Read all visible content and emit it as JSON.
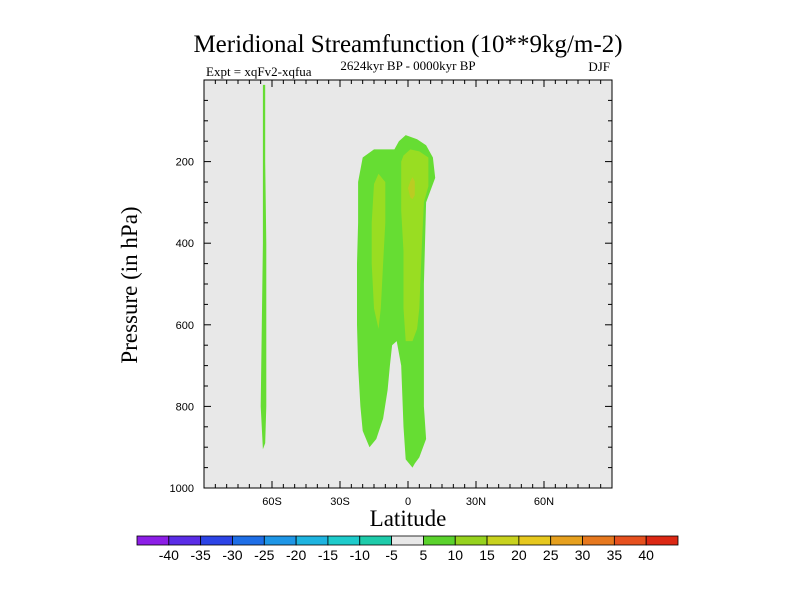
{
  "chart_data": {
    "type": "heatmap",
    "title": "Meridional Streamfunction (10**9kg/m-2)",
    "left_string": "Expt = xqFv2-xqfua",
    "center_string": "2624kyr BP - 0000kyr BP",
    "right_string": "DJF",
    "xlabel": "Latitude",
    "ylabel": "Pressure (in hPa)",
    "xlim": [
      -90,
      90
    ],
    "ylim": [
      1000,
      0
    ],
    "x_ticks": [
      {
        "value": -60,
        "label": "60S"
      },
      {
        "value": -30,
        "label": "30S"
      },
      {
        "value": 0,
        "label": "0"
      },
      {
        "value": 30,
        "label": "30N"
      },
      {
        "value": 60,
        "label": "60N"
      }
    ],
    "y_ticks": [
      {
        "value": 200,
        "label": "200"
      },
      {
        "value": 400,
        "label": "400"
      },
      {
        "value": 600,
        "label": "600"
      },
      {
        "value": 800,
        "label": "800"
      },
      {
        "value": 1000,
        "label": "1000"
      }
    ],
    "background_color": "#e8e8e8",
    "colorbar": {
      "labels": [
        "-40",
        "-35",
        "-30",
        "-25",
        "-20",
        "-15",
        "-10",
        "-5",
        "5",
        "10",
        "15",
        "20",
        "25",
        "30",
        "35",
        "40"
      ],
      "colors": [
        "#8c1ee6",
        "#5a2ce6",
        "#2c44e6",
        "#1e6ee6",
        "#1e96e6",
        "#1eb4e0",
        "#1ecbcb",
        "#1ecbaa",
        "#e8e8e8",
        "#5ad22c",
        "#96d21e",
        "#c8d21e",
        "#e6c81e",
        "#e6a01e",
        "#e6781e",
        "#e6501e",
        "#dc2814"
      ]
    },
    "regions": [
      {
        "level": "5 to 10",
        "color": "#66dd33",
        "polygon": [
          [
            -64,
            12
          ],
          [
            -63,
            12
          ],
          [
            -63,
            200
          ],
          [
            -62.5,
            400
          ],
          [
            -62.5,
            600
          ],
          [
            -62.5,
            800
          ],
          [
            -63,
            890
          ],
          [
            -64,
            905
          ],
          [
            -65,
            800
          ],
          [
            -64.5,
            600
          ],
          [
            -64,
            400
          ],
          [
            -64,
            200
          ]
        ]
      },
      {
        "level": "5 to 10",
        "color": "#66dd33",
        "polygon": [
          [
            -22,
            350
          ],
          [
            -22,
            250
          ],
          [
            -20,
            190
          ],
          [
            -15,
            170
          ],
          [
            -6,
            170
          ],
          [
            -4,
            150
          ],
          [
            -1,
            135
          ],
          [
            4,
            145
          ],
          [
            8,
            160
          ],
          [
            11,
            190
          ],
          [
            12,
            240
          ],
          [
            8,
            300
          ],
          [
            7,
            500
          ],
          [
            7,
            700
          ],
          [
            7,
            800
          ],
          [
            8,
            880
          ],
          [
            5,
            925
          ],
          [
            3,
            940
          ],
          [
            2,
            950
          ],
          [
            -1,
            930
          ],
          [
            -2,
            850
          ],
          [
            -3,
            700
          ],
          [
            -5,
            640
          ],
          [
            -7,
            650
          ],
          [
            -8,
            700
          ],
          [
            -9,
            760
          ],
          [
            -11,
            830
          ],
          [
            -14,
            880
          ],
          [
            -17,
            900
          ],
          [
            -20,
            860
          ],
          [
            -21,
            800
          ],
          [
            -22,
            700
          ],
          [
            -22.5,
            600
          ],
          [
            -22.5,
            450
          ]
        ]
      },
      {
        "level": "10 to 15",
        "color": "#99dd22",
        "polygon": [
          [
            -15,
            255
          ],
          [
            -13,
            230
          ],
          [
            -10,
            250
          ],
          [
            -10,
            350
          ],
          [
            -11,
            450
          ],
          [
            -12,
            560
          ],
          [
            -13,
            610
          ],
          [
            -15,
            560
          ],
          [
            -16,
            450
          ],
          [
            -16,
            350
          ]
        ]
      },
      {
        "level": "10 to 15",
        "color": "#99dd22",
        "polygon": [
          [
            -3,
            200
          ],
          [
            -2,
            185
          ],
          [
            1,
            170
          ],
          [
            5,
            175
          ],
          [
            9,
            190
          ],
          [
            9,
            260
          ],
          [
            7,
            300
          ],
          [
            6,
            420
          ],
          [
            5,
            560
          ],
          [
            4,
            610
          ],
          [
            2,
            640
          ],
          [
            -1,
            640
          ],
          [
            -2,
            560
          ],
          [
            -2,
            420
          ],
          [
            -3,
            320
          ]
        ]
      },
      {
        "level": "15 to 20",
        "color": "#bbcc22",
        "polygon": [
          [
            0,
            265
          ],
          [
            1,
            248
          ],
          [
            2,
            238
          ],
          [
            3,
            248
          ],
          [
            3,
            282
          ],
          [
            2,
            292
          ],
          [
            1,
            288
          ]
        ]
      }
    ]
  }
}
